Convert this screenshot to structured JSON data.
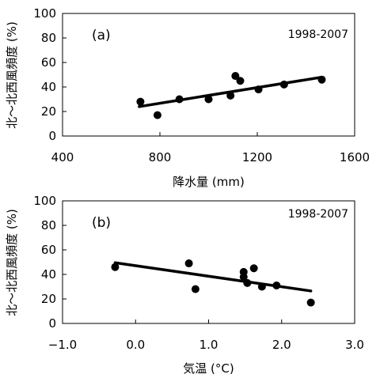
{
  "chart_data": [
    {
      "type": "scatter",
      "panel_label": "(a)",
      "period": "1998-2007",
      "xlabel": "降水量 (mm)",
      "ylabel": "北～北西風頻度 (%)",
      "xlim": [
        400,
        1600
      ],
      "ylim": [
        0,
        100
      ],
      "x_ticks": [
        "400",
        "800",
        "1200",
        "1600"
      ],
      "y_ticks": [
        "0",
        "20",
        "40",
        "60",
        "80",
        "100"
      ],
      "grid": false,
      "points": [
        {
          "x": 720,
          "y": 28
        },
        {
          "x": 790,
          "y": 17
        },
        {
          "x": 880,
          "y": 30
        },
        {
          "x": 1000,
          "y": 30
        },
        {
          "x": 1090,
          "y": 33
        },
        {
          "x": 1110,
          "y": 49
        },
        {
          "x": 1130,
          "y": 45
        },
        {
          "x": 1205,
          "y": 38
        },
        {
          "x": 1310,
          "y": 42
        },
        {
          "x": 1465,
          "y": 46
        }
      ],
      "trendline": {
        "x": [
          715,
          1465
        ],
        "y": [
          24,
          48
        ]
      }
    },
    {
      "type": "scatter",
      "panel_label": "(b)",
      "period": "1998-2007",
      "xlabel": "気温 (°C)",
      "ylabel": "北～北西風頻度 (%)",
      "xlim": [
        -1.0,
        3.0
      ],
      "ylim": [
        0,
        100
      ],
      "x_ticks": [
        "−1.0",
        "0.0",
        "1.0",
        "2.0",
        "3.0"
      ],
      "y_ticks": [
        "0",
        "20",
        "40",
        "60",
        "80",
        "100"
      ],
      "grid": false,
      "points": [
        {
          "x": -0.28,
          "y": 46
        },
        {
          "x": 0.73,
          "y": 49
        },
        {
          "x": 0.82,
          "y": 28
        },
        {
          "x": 1.48,
          "y": 42
        },
        {
          "x": 1.48,
          "y": 38
        },
        {
          "x": 1.53,
          "y": 33
        },
        {
          "x": 1.62,
          "y": 45
        },
        {
          "x": 1.73,
          "y": 30
        },
        {
          "x": 1.93,
          "y": 31
        },
        {
          "x": 2.4,
          "y": 17
        }
      ],
      "trendline": {
        "x": [
          -0.28,
          2.4
        ],
        "y": [
          49.5,
          26.5
        ]
      }
    }
  ]
}
